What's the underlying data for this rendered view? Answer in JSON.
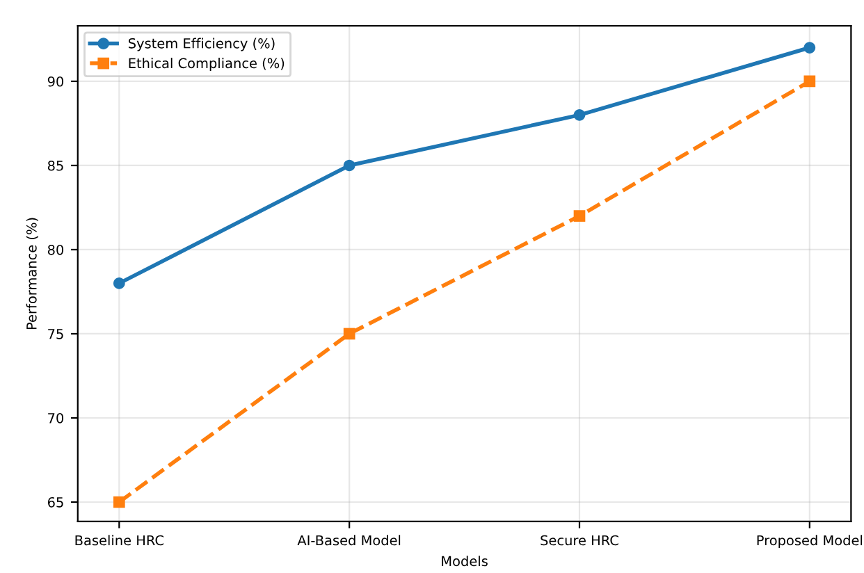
{
  "chart_data": {
    "type": "line",
    "xlabel": "Models",
    "ylabel": "Performance (%)",
    "categories": [
      "Baseline HRC",
      "AI-Based Model",
      "Secure HRC",
      "Proposed Model"
    ],
    "series": [
      {
        "name": "System Efficiency (%)",
        "color": "#1f77b4",
        "values": [
          78,
          85,
          88,
          92
        ],
        "marker": "circle",
        "line_style": "solid"
      },
      {
        "name": "Ethical Compliance (%)",
        "color": "#ff7f0e",
        "values": [
          65,
          75,
          82,
          90
        ],
        "marker": "square",
        "line_style": "dashed"
      }
    ],
    "ylim": [
      63.85,
      93.3
    ],
    "yticks": [
      65,
      70,
      75,
      80,
      85,
      90
    ],
    "grid": true,
    "legend": "top left"
  }
}
